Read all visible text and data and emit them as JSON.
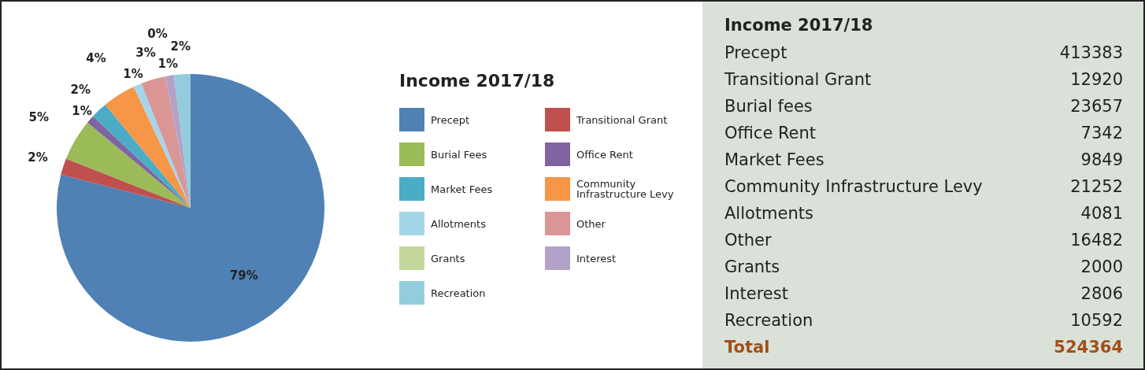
{
  "chart_data": [
    {
      "type": "pie",
      "legend_title": "Income 2017/18",
      "legend": "right",
      "categories": [
        "Precept",
        "Transitional Grant",
        "Burial Fees",
        "Office Rent",
        "Market Fees",
        "Community Infrastructure Levy",
        "Allotments",
        "Other",
        "Grants",
        "Interest",
        "Recreation"
      ],
      "values": [
        79,
        2,
        5,
        1,
        2,
        4,
        1,
        3,
        0,
        1,
        2
      ],
      "value_labels": [
        "79%",
        "2%",
        "5%",
        "1%",
        "2%",
        "4%",
        "1%",
        "3%",
        "0%",
        "1%",
        "2%"
      ],
      "colors": [
        "#4f81b5",
        "#c0504d",
        "#9bbb59",
        "#8064a2",
        "#4bacc6",
        "#f79646",
        "#a5d5e8",
        "#d99694",
        "#c3d69b",
        "#b3a2c7",
        "#93cddd"
      ]
    },
    {
      "type": "other",
      "title": "Income 2017/18",
      "data_labels": true,
      "categories": [
        "Precept",
        "Transitional Grant",
        "Burial fees",
        "Office Rent",
        "Market Fees",
        "Community Infrastructure Levy",
        "Allotments",
        "Other",
        "Grants",
        "Interest",
        "Recreation"
      ],
      "values": [
        413383,
        12920,
        23657,
        7342,
        9849,
        21252,
        4081,
        16482,
        2000,
        2806,
        10592
      ],
      "annotations": [
        "Total",
        "524364"
      ]
    }
  ]
}
